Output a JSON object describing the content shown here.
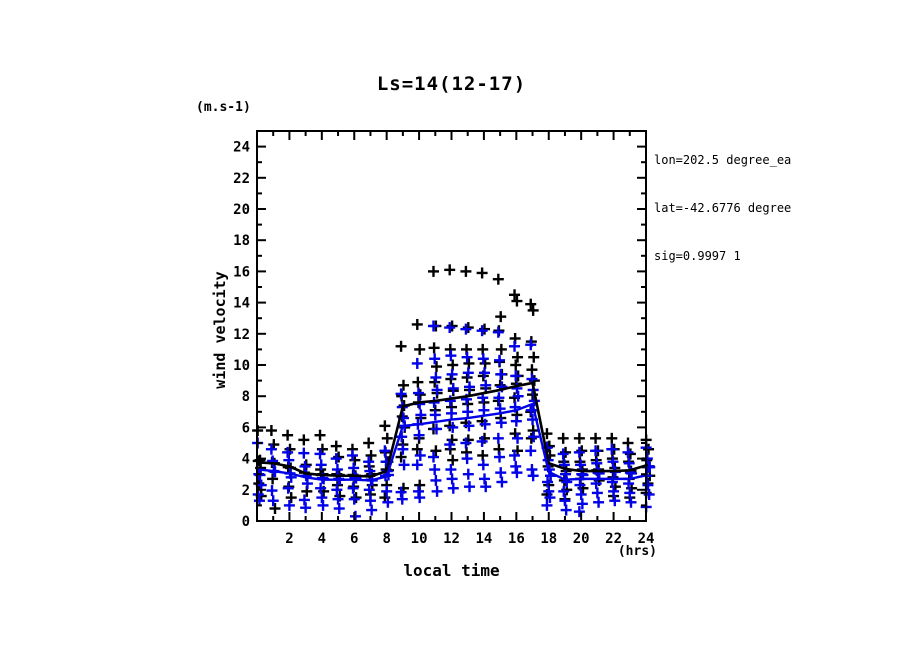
{
  "header": {
    "title": "Ls=14(12-17)"
  },
  "labels": {
    "y_units": "(m.s-1)",
    "y_axis": "wind velocity",
    "x_axis": "local time",
    "x_units": "(hrs)"
  },
  "annotation": {
    "line1": "lon=202.5 degree_ea",
    "line2": "lat=-42.6776 degree",
    "line3": "sig=0.9997 1"
  },
  "chart_data": {
    "type": "scatter",
    "title": "Ls=14(12-17)",
    "xlabel": "local time",
    "xlabel_units": "(hrs)",
    "ylabel": "wind velocity",
    "ylabel_units": "(m.s-1)",
    "xlim": [
      0,
      24
    ],
    "ylim": [
      0,
      25
    ],
    "grid": false,
    "legend": "none",
    "marker": "plus",
    "colors": {
      "black": "#000000",
      "blue": "#0202e8"
    },
    "x_ticks": {
      "major": [
        0,
        2,
        4,
        6,
        8,
        10,
        12,
        14,
        16,
        18,
        20,
        22,
        24
      ],
      "minor": [
        1,
        3,
        5,
        7,
        9,
        11,
        13,
        15,
        17,
        19,
        21,
        23
      ],
      "labels": [
        [
          2,
          "2"
        ],
        [
          4,
          "4"
        ],
        [
          6,
          "6"
        ],
        [
          8,
          "8"
        ],
        [
          10,
          "10"
        ],
        [
          12,
          "12"
        ],
        [
          14,
          "14"
        ],
        [
          16,
          "16"
        ],
        [
          18,
          "18"
        ],
        [
          20,
          "20"
        ],
        [
          22,
          "22"
        ],
        [
          24,
          "24"
        ]
      ]
    },
    "y_ticks": {
      "major": [
        0,
        2,
        4,
        6,
        8,
        10,
        12,
        14,
        16,
        18,
        20,
        22,
        24
      ],
      "minor": [
        1,
        3,
        5,
        7,
        9,
        11,
        13,
        15,
        17,
        19,
        21,
        23
      ],
      "labels": [
        [
          0,
          "0"
        ],
        [
          2,
          "2"
        ],
        [
          4,
          "4"
        ],
        [
          6,
          "6"
        ],
        [
          8,
          "8"
        ],
        [
          10,
          "10"
        ],
        [
          12,
          "12"
        ],
        [
          14,
          "14"
        ],
        [
          16,
          "16"
        ],
        [
          18,
          "18"
        ],
        [
          20,
          "20"
        ],
        [
          22,
          "22"
        ],
        [
          24,
          "24"
        ]
      ]
    },
    "columns": [
      [
        0.15,
        [
          5.8,
          3.9,
          3.85,
          3.4,
          2.4,
          1.6
        ],
        [
          5.0,
          3.0,
          2.95,
          2.3,
          1.7,
          1.3
        ]
      ],
      [
        1,
        [
          5.8,
          4.9,
          3.75,
          3.7,
          2.7,
          0.8
        ],
        [
          4.6,
          3.85,
          3.2,
          3.15,
          1.95,
          1.3
        ]
      ],
      [
        2,
        [
          5.5,
          4.6,
          3.45,
          3.4,
          2.2,
          1.5
        ],
        [
          4.4,
          3.9,
          3.05,
          2.8,
          2.1,
          1.0
        ]
      ],
      [
        3,
        [
          5.2,
          3.6,
          3.1,
          1.9
        ],
        [
          4.35,
          3.5,
          2.9,
          2.4,
          1.35,
          0.85
        ]
      ],
      [
        4,
        [
          5.5,
          4.6,
          3.3,
          3.0,
          2.95,
          1.9
        ],
        [
          4.3,
          3.6,
          2.75,
          2.7,
          2.1,
          1.5,
          1.0
        ]
      ],
      [
        5,
        [
          4.8,
          4.1,
          3.0,
          2.95,
          2.3,
          1.6
        ],
        [
          4.0,
          3.3,
          2.7,
          2.65,
          2.0,
          1.4,
          0.8
        ]
      ],
      [
        6,
        [
          4.6,
          3.9,
          2.95,
          2.9,
          2.2,
          1.5
        ],
        [
          4.2,
          3.4,
          2.8,
          2.75,
          2.1,
          1.4,
          0.3
        ]
      ],
      [
        7,
        [
          5.0,
          4.2,
          3.5,
          3.0,
          2.9,
          2.3,
          1.7
        ],
        [
          3.8,
          3.2,
          2.65,
          2.6,
          2.0,
          1.3,
          0.7
        ]
      ],
      [
        8,
        [
          6.1,
          5.3,
          4.4,
          3.8,
          3.3,
          3.25,
          2.3,
          1.5
        ],
        [
          4.5,
          3.8,
          3.2,
          2.95,
          2.9,
          1.9,
          1.2
        ]
      ],
      [
        9,
        [
          11.2,
          8.7,
          8.0,
          7.4,
          6.7,
          6.0,
          4.9,
          4.1,
          2.1
        ],
        [
          8.15,
          7.3,
          6.6,
          6.1,
          5.4,
          4.6,
          3.6,
          1.85,
          1.4
        ]
      ],
      [
        10,
        [
          12.6,
          11.0,
          8.9,
          8.1,
          7.6,
          6.6,
          5.3,
          4.6,
          2.3
        ],
        [
          10.1,
          8.2,
          7.5,
          6.8,
          6.2,
          5.5,
          4.2,
          3.6,
          1.9,
          1.5
        ]
      ],
      [
        11,
        [
          16.0,
          12.5,
          11.1,
          9.9,
          8.9,
          8.2,
          7.1,
          5.9,
          4.5
        ],
        [
          12.5,
          10.4,
          9.2,
          8.4,
          7.6,
          6.8,
          5.9,
          4.1,
          3.3,
          2.6,
          1.9
        ]
      ],
      [
        12,
        [
          16.1,
          12.5,
          11.0,
          10.0,
          9.1,
          8.35,
          7.3,
          6.1,
          5.2,
          4.6,
          3.9
        ],
        [
          12.4,
          10.6,
          9.4,
          8.5,
          7.7,
          6.9,
          6.0,
          4.9,
          3.3,
          2.7,
          2.1
        ]
      ],
      [
        13,
        [
          16.0,
          12.4,
          11.0,
          10.1,
          9.2,
          8.4,
          7.5,
          6.3,
          5.2,
          4.4
        ],
        [
          12.3,
          10.5,
          9.5,
          8.6,
          7.8,
          7.0,
          6.1,
          5.0,
          4.0,
          3.0,
          2.2
        ]
      ],
      [
        14,
        [
          15.9,
          12.3,
          11.0,
          10.1,
          9.3,
          8.5,
          7.6,
          6.4,
          5.3,
          4.2
        ],
        [
          12.2,
          10.4,
          9.5,
          8.7,
          7.9,
          7.1,
          6.2,
          5.1,
          3.6,
          2.7,
          2.2
        ]
      ],
      [
        15,
        [
          15.5,
          13.1,
          12.2,
          11.0,
          10.2,
          9.4,
          8.7,
          7.7,
          6.6,
          4.6
        ],
        [
          12.1,
          10.3,
          9.4,
          8.6,
          7.9,
          7.2,
          6.3,
          5.3,
          4.1,
          3.1,
          2.5
        ]
      ],
      [
        16,
        [
          14.5,
          14.1,
          11.7,
          10.5,
          10.0,
          9.3,
          8.8,
          7.9,
          6.8,
          5.6,
          4.5
        ],
        [
          11.2,
          9.3,
          8.5,
          8.0,
          7.3,
          6.4,
          5.3,
          4.2,
          3.5,
          3.1
        ]
      ],
      [
        17,
        [
          13.9,
          13.5,
          11.5,
          10.5,
          9.7,
          9.0,
          8.1,
          7.0,
          5.8,
          5.3
        ],
        [
          11.3,
          9.1,
          8.4,
          7.7,
          7.1,
          6.5,
          5.4,
          4.5,
          3.3,
          2.9
        ]
      ],
      [
        18,
        [
          5.6,
          4.8,
          4.75,
          4.2,
          3.5,
          2.9,
          2.3,
          1.7
        ],
        [
          4.7,
          3.9,
          3.3,
          2.9,
          2.5,
          1.9,
          1.5,
          1.0
        ]
      ],
      [
        19,
        [
          5.3,
          4.4,
          3.8,
          3.2,
          2.6,
          2.0,
          1.4
        ],
        [
          4.3,
          3.6,
          3.0,
          2.5,
          1.9,
          1.3,
          0.7
        ]
      ],
      [
        20,
        [
          5.3,
          4.5,
          3.8,
          3.3,
          2.7,
          2.1
        ],
        [
          4.4,
          3.6,
          3.0,
          2.95,
          2.3,
          1.7,
          1.1,
          0.6
        ]
      ],
      [
        21,
        [
          5.3,
          4.5,
          3.9,
          3.3,
          3.25,
          2.6
        ],
        [
          4.5,
          3.7,
          3.1,
          3.05,
          2.4,
          1.8,
          1.2
        ]
      ],
      [
        22,
        [
          5.3,
          4.6,
          4.0,
          3.4,
          2.8,
          2.2,
          1.6
        ],
        [
          4.6,
          3.8,
          3.2,
          3.15,
          2.5,
          1.9,
          1.3
        ]
      ],
      [
        23,
        [
          5.0,
          4.3,
          3.8,
          3.2,
          2.7,
          2.1,
          1.5
        ],
        [
          4.4,
          3.7,
          3.1,
          3.05,
          2.4,
          1.8,
          1.2
        ]
      ],
      [
        24.12,
        [
          5.2,
          4.6,
          3.9,
          3.5,
          3.45,
          2.9,
          2.4,
          1.8
        ],
        [
          4.7,
          4.0,
          3.5,
          3.45,
          2.9,
          2.3,
          1.7,
          0.9
        ]
      ]
    ],
    "mean_lines": {
      "x": [
        0.15,
        1,
        2,
        3,
        4,
        5,
        6,
        7,
        8,
        9,
        10,
        11,
        12,
        13,
        14,
        15,
        16,
        17,
        18,
        19,
        20,
        21,
        22,
        23,
        24.12
      ],
      "black": [
        3.75,
        3.7,
        3.5,
        3.05,
        2.95,
        2.9,
        2.9,
        2.85,
        3.2,
        7.35,
        7.6,
        7.7,
        7.85,
        8.0,
        8.2,
        8.4,
        8.65,
        8.85,
        3.7,
        3.35,
        3.2,
        3.2,
        3.2,
        3.25,
        3.6
      ],
      "blue": [
        3.3,
        3.2,
        3.05,
        2.8,
        2.65,
        2.65,
        2.65,
        2.6,
        2.85,
        6.1,
        6.2,
        6.35,
        6.5,
        6.6,
        6.75,
        6.9,
        7.1,
        7.5,
        3.15,
        2.65,
        2.7,
        2.7,
        2.7,
        2.7,
        2.95
      ]
    }
  }
}
